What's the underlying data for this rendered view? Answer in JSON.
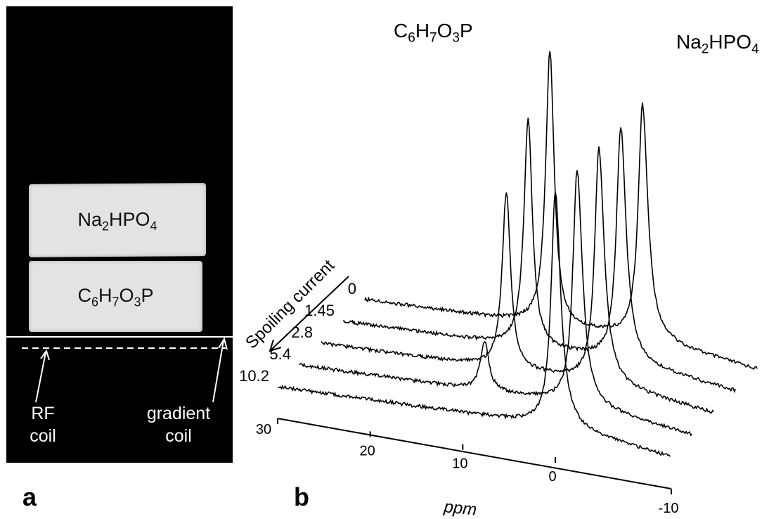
{
  "panel_a": {
    "letter": "a",
    "phantom_top_label": {
      "base": [
        "Na",
        "HPO",
        ""
      ],
      "subs": [
        "2",
        "4",
        ""
      ]
    },
    "phantom_bottom_label": {
      "base": [
        "C",
        "H",
        "O",
        "P"
      ],
      "subs": [
        "6",
        "7",
        "3",
        ""
      ]
    },
    "rf_coil_label_line1": "RF",
    "rf_coil_label_line2": "coil",
    "gradient_coil_label_line1": "gradient",
    "gradient_coil_label_line2": "coil"
  },
  "panel_b": {
    "letter": "b",
    "compound_left": {
      "base": [
        "C",
        "H",
        "O",
        "P"
      ],
      "subs": [
        "6",
        "7",
        "3",
        ""
      ]
    },
    "compound_right": {
      "base": [
        "Na",
        "HPO",
        ""
      ],
      "subs": [
        "2",
        "4",
        ""
      ]
    },
    "axis_title": "Spoiling current",
    "x_axis_label": "ppm",
    "x_ticks": [
      "30",
      "20",
      "10",
      "0",
      "-10"
    ],
    "colors": {
      "line": "#000000",
      "background": "#ffffff",
      "image_background": "#000000"
    }
  },
  "chart_data": {
    "type": "line",
    "title": "",
    "xlabel": "ppm",
    "ylabel": "",
    "xlim": [
      30,
      -10
    ],
    "depth_axis_label": "Spoiling current",
    "categories": [
      "0",
      "1.45",
      "2.8",
      "5.4",
      "10.2"
    ],
    "peaks": [
      {
        "name": "C6H7O3P",
        "ppm": 10
      },
      {
        "name": "Na2HPO4",
        "ppm": 0
      }
    ],
    "series": [
      {
        "name": "0",
        "peak_C6H7O3P_height": 1.0,
        "peak_Na2HPO4_height": 0.85
      },
      {
        "name": "1.45",
        "peak_C6H7O3P_height": 0.83,
        "peak_Na2HPO4_height": 0.85
      },
      {
        "name": "2.8",
        "peak_C6H7O3P_height": 0.64,
        "peak_Na2HPO4_height": 0.85
      },
      {
        "name": "5.4",
        "peak_C6H7O3P_height": 0.18,
        "peak_Na2HPO4_height": 0.85
      },
      {
        "name": "10.2",
        "peak_C6H7O3P_height": 0.0,
        "peak_Na2HPO4_height": 0.85
      }
    ]
  }
}
